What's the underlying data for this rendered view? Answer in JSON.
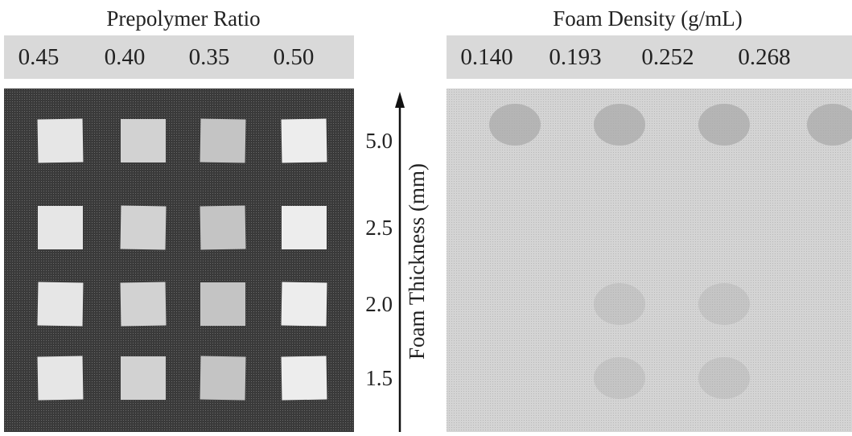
{
  "left": {
    "title": "Prepolymer Ratio",
    "values": [
      "0.45",
      "0.40",
      "0.35",
      "0.50"
    ]
  },
  "right": {
    "title": "Foam Density (g/mL)",
    "values": [
      "0.140",
      "0.193",
      "0.252",
      "0.268"
    ]
  },
  "axis": {
    "label": "Foam Thickness (mm)",
    "ticks": [
      "5.0",
      "2.5",
      "2.0",
      "1.5"
    ]
  }
}
